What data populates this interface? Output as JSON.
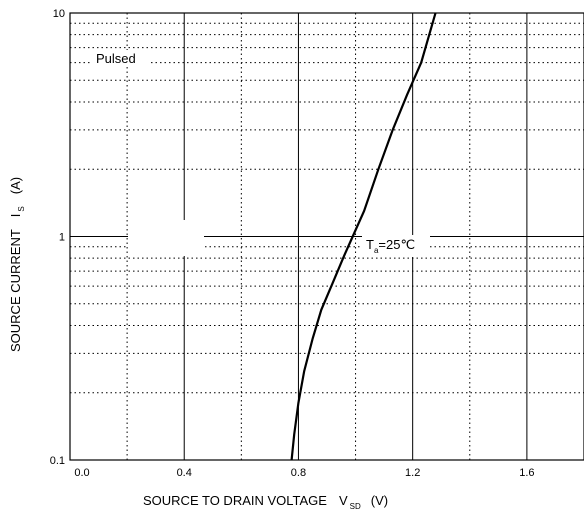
{
  "chart_data": {
    "type": "line",
    "x_label_main": "SOURCE TO DRAIN VOLTAGE",
    "x_label_symbol": "V",
    "x_label_sub": "SD",
    "x_label_unit": "(V)",
    "y_label_main": "SOURCE CURRENT",
    "y_label_symbol": "I",
    "y_label_sub": "S",
    "y_label_unit": "(A)",
    "xlim": [
      0.0,
      1.8
    ],
    "ylim": [
      0.1,
      10
    ],
    "y_scale": "log",
    "x_ticks": [
      "0.0",
      "0.4",
      "0.8",
      "1.2",
      "1.6"
    ],
    "x_tick_values": [
      0.0,
      0.4,
      0.8,
      1.2,
      1.6
    ],
    "y_ticks": [
      "0.1",
      "1",
      "10"
    ],
    "y_tick_values": [
      0.1,
      1,
      10
    ],
    "x_minor_grid": [
      0.2,
      0.6,
      1.0,
      1.4
    ],
    "y_minor_grid": [
      0.2,
      0.3,
      0.4,
      0.5,
      0.6,
      0.7,
      0.8,
      0.9,
      2,
      3,
      4,
      5,
      6,
      7,
      8,
      9
    ],
    "grid": true,
    "annotations": {
      "pulsed": "Pulsed",
      "temp_main": "T",
      "temp_sub": "a",
      "temp_value": "=25℃"
    },
    "series": [
      {
        "color": "#000000",
        "points": [
          [
            0.776,
            0.1
          ],
          [
            0.785,
            0.13
          ],
          [
            0.8,
            0.18
          ],
          [
            0.82,
            0.25
          ],
          [
            0.85,
            0.35
          ],
          [
            0.88,
            0.47
          ],
          [
            0.92,
            0.62
          ],
          [
            0.96,
            0.82
          ],
          [
            0.99,
            1.0
          ],
          [
            1.03,
            1.3
          ],
          [
            1.08,
            2.0
          ],
          [
            1.13,
            3.0
          ],
          [
            1.18,
            4.3
          ],
          [
            1.23,
            6.0
          ],
          [
            1.28,
            10.0
          ]
        ]
      }
    ]
  }
}
